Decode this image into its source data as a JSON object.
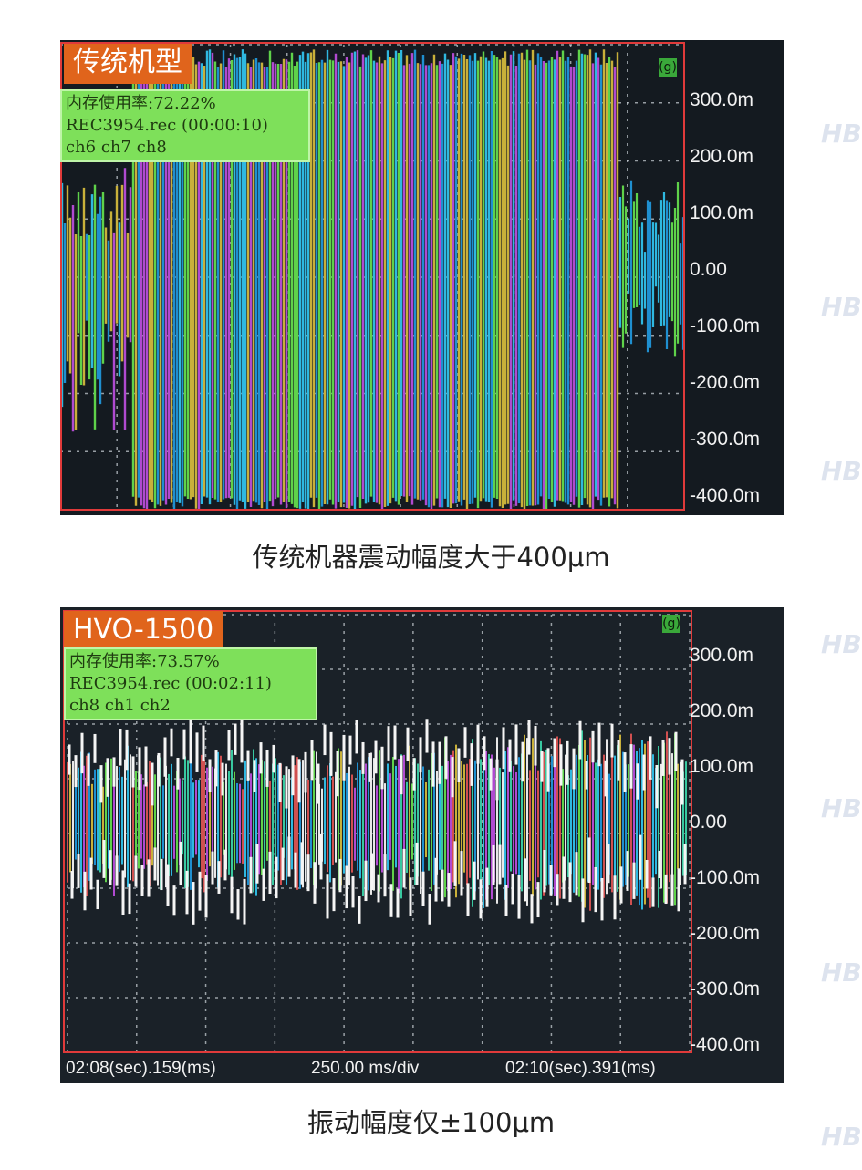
{
  "panel1": {
    "badge": "传统机型",
    "info_line1": "内存使用率:72.22%",
    "info_line2": "REC3954.rec (00:00:10)",
    "info_line3": "ch6 ch7 ch8",
    "marker": "(g)",
    "y_labels": [
      "300.0m",
      "200.0m",
      "100.0m",
      "0.00",
      "-100.0m",
      "-200.0m",
      "-300.0m",
      "-400.0m"
    ]
  },
  "caption1": "传统机器震动幅度大于400μm",
  "panel2": {
    "badge": "HVO-1500",
    "info_line1": "内存使用率:73.57%",
    "info_line2": "REC3954.rec (00:02:11)",
    "info_line3": "ch8 ch1 ch2",
    "marker": "(g)",
    "y_labels": [
      "300.0m",
      "200.0m",
      "100.0m",
      "0.00",
      "-100.0m",
      "-200.0m",
      "-300.0m",
      "-400.0m"
    ],
    "x_left": "02:08(sec).159(ms)",
    "x_mid": "250.00 ms/div",
    "x_right": "02:10(sec).391(ms)"
  },
  "caption2": "振动幅度仅±100μm",
  "trace_colors": [
    "#2fb8e0",
    "#5fd24a",
    "#1f8fd0",
    "#c8b03a",
    "#b04ad0",
    "#e8e8e8",
    "#38c8a0",
    "#d05050"
  ]
}
